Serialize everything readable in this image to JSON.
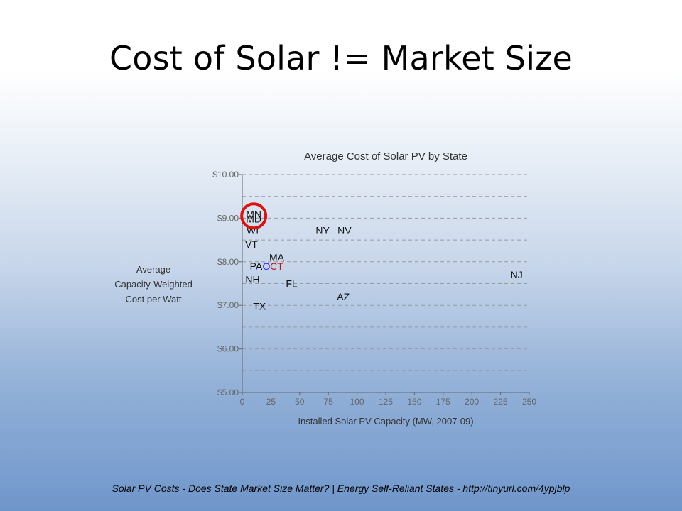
{
  "slide": {
    "title": "Cost of Solar != Market Size",
    "footer": "Solar PV Costs - Does State Market Size Matter? | Energy Self-Reliant States - http://tinyurl.com/4ypjblp"
  },
  "chart_data": {
    "type": "scatter",
    "title": "Average Cost of Solar PV by State",
    "xlabel": "Installed Solar PV Capacity (MW, 2007-09)",
    "ylabel": [
      "Average",
      "Capacity-Weighted",
      "Cost per Watt"
    ],
    "xlim": [
      0,
      250
    ],
    "ylim": [
      5,
      10
    ],
    "xticks": [
      0,
      25,
      50,
      75,
      100,
      125,
      150,
      175,
      200,
      225,
      250
    ],
    "xtick_labels": [
      "0",
      "25",
      "50",
      "75",
      "100",
      "125",
      "150",
      "175",
      "200",
      "225",
      "250"
    ],
    "yticks": [
      5,
      6,
      7,
      8,
      9,
      10
    ],
    "ytick_labels": [
      "$5.00",
      "$6.00",
      "$7.00",
      "$8.00",
      "$9.00",
      "$10.00"
    ],
    "grid": "horizontal dashed",
    "points": [
      {
        "label": "MN",
        "x": 10,
        "y": 9.1,
        "color": "#111111"
      },
      {
        "label": "MD",
        "x": 10,
        "y": 8.98,
        "color": "#111111"
      },
      {
        "label": "WI",
        "x": 9,
        "y": 8.72,
        "color": "#111111"
      },
      {
        "label": "VT",
        "x": 8,
        "y": 8.4,
        "color": "#111111"
      },
      {
        "label": "NY",
        "x": 70,
        "y": 8.72,
        "color": "#111111"
      },
      {
        "label": "NV",
        "x": 89,
        "y": 8.72,
        "color": "#111111"
      },
      {
        "label": "MA",
        "x": 30,
        "y": 8.1,
        "color": "#111111"
      },
      {
        "label": "PA",
        "x": 12,
        "y": 7.9,
        "color": "#111111"
      },
      {
        "label": "O",
        "x": 21,
        "y": 7.9,
        "color": "#2a2aee"
      },
      {
        "label": "CT",
        "x": 30,
        "y": 7.9,
        "color": "#cc1111"
      },
      {
        "label": "NH",
        "x": 9,
        "y": 7.6,
        "color": "#111111"
      },
      {
        "label": "FL",
        "x": 43,
        "y": 7.5,
        "color": "#111111"
      },
      {
        "label": "AZ",
        "x": 88,
        "y": 7.2,
        "color": "#111111"
      },
      {
        "label": "NJ",
        "x": 239,
        "y": 7.7,
        "color": "#111111"
      },
      {
        "label": "TX",
        "x": 15,
        "y": 6.98,
        "color": "#111111"
      }
    ],
    "highlight": {
      "label": "MN",
      "color": "#dd1111"
    }
  }
}
